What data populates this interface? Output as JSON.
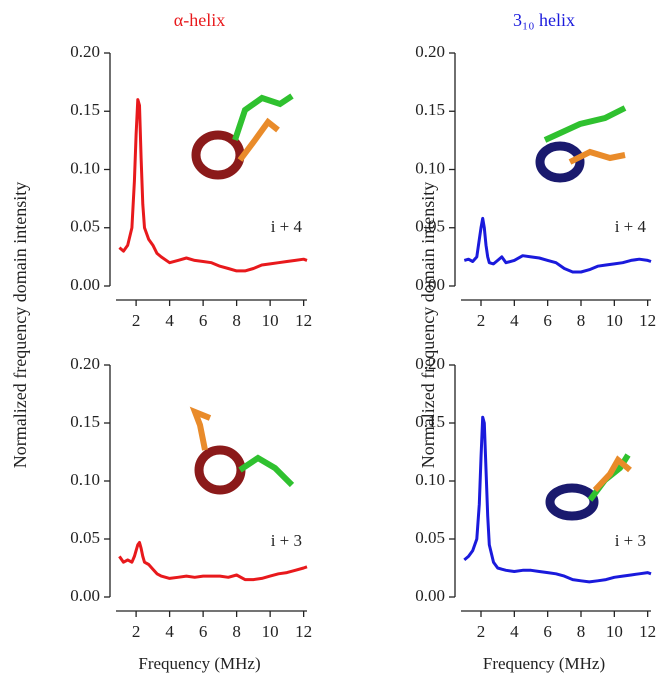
{
  "chart_data": [
    {
      "type": "line",
      "title": "α-helix",
      "ylabel": "Normalized frequency domain intensity",
      "annotation": "i + 4",
      "color": "#e8191c",
      "x": [
        1.0,
        1.25,
        1.5,
        1.75,
        1.9,
        2.0,
        2.1,
        2.2,
        2.3,
        2.4,
        2.5,
        2.75,
        3.0,
        3.25,
        3.5,
        4,
        4.5,
        5,
        5.5,
        6,
        6.5,
        7,
        7.5,
        8,
        8.5,
        9,
        9.5,
        10,
        10.5,
        11,
        11.5,
        12,
        12.2
      ],
      "values": [
        0.033,
        0.03,
        0.035,
        0.05,
        0.09,
        0.13,
        0.16,
        0.155,
        0.11,
        0.07,
        0.05,
        0.04,
        0.035,
        0.028,
        0.025,
        0.02,
        0.022,
        0.024,
        0.022,
        0.021,
        0.02,
        0.017,
        0.015,
        0.013,
        0.013,
        0.015,
        0.018,
        0.019,
        0.02,
        0.021,
        0.022,
        0.023,
        0.022
      ],
      "xlim": [
        0.8,
        12.2
      ],
      "ylim": [
        0,
        0.2
      ],
      "xticks": [
        2,
        4,
        6,
        8,
        10,
        12
      ],
      "yticks": [
        {
          "value": 0,
          "label": "0.00"
        },
        {
          "value": 0.05,
          "label": "0.05"
        },
        {
          "value": 0.1,
          "label": "0.10"
        },
        {
          "value": 0.15,
          "label": "0.15"
        },
        {
          "value": 0.2,
          "label": "0.20"
        }
      ]
    },
    {
      "type": "line",
      "title": "3₁₀ helix",
      "ylabel": "Normalized frequency domain intensity",
      "annotation": "i + 4",
      "color": "#1a1adc",
      "x": [
        1.0,
        1.25,
        1.5,
        1.75,
        1.9,
        2.0,
        2.1,
        2.2,
        2.3,
        2.4,
        2.5,
        2.75,
        3.0,
        3.25,
        3.5,
        4,
        4.5,
        5,
        5.5,
        6,
        6.5,
        7,
        7.5,
        8,
        8.5,
        9,
        9.5,
        10,
        10.5,
        11,
        11.5,
        12,
        12.2
      ],
      "values": [
        0.022,
        0.023,
        0.021,
        0.025,
        0.04,
        0.05,
        0.058,
        0.05,
        0.035,
        0.025,
        0.02,
        0.019,
        0.022,
        0.025,
        0.02,
        0.022,
        0.026,
        0.025,
        0.024,
        0.022,
        0.02,
        0.015,
        0.012,
        0.012,
        0.014,
        0.017,
        0.018,
        0.019,
        0.02,
        0.022,
        0.023,
        0.022,
        0.021
      ],
      "xlim": [
        0.8,
        12.2
      ],
      "ylim": [
        0,
        0.2
      ],
      "xticks": [
        2,
        4,
        6,
        8,
        10,
        12
      ],
      "yticks": [
        {
          "value": 0,
          "label": "0.00"
        },
        {
          "value": 0.05,
          "label": "0.05"
        },
        {
          "value": 0.1,
          "label": "0.10"
        },
        {
          "value": 0.15,
          "label": "0.15"
        },
        {
          "value": 0.2,
          "label": "0.20"
        }
      ]
    },
    {
      "type": "line",
      "xlabel": "Frequency (MHz)",
      "annotation": "i + 3",
      "color": "#e8191c",
      "x": [
        1.0,
        1.25,
        1.5,
        1.75,
        1.9,
        2.0,
        2.1,
        2.2,
        2.3,
        2.4,
        2.5,
        2.75,
        3.0,
        3.25,
        3.5,
        4,
        4.5,
        5,
        5.5,
        6,
        6.5,
        7,
        7.5,
        8,
        8.5,
        9,
        9.5,
        10,
        10.5,
        11,
        11.5,
        12,
        12.2
      ],
      "values": [
        0.035,
        0.03,
        0.032,
        0.03,
        0.035,
        0.04,
        0.045,
        0.047,
        0.042,
        0.035,
        0.03,
        0.028,
        0.024,
        0.02,
        0.018,
        0.016,
        0.017,
        0.018,
        0.017,
        0.018,
        0.018,
        0.018,
        0.017,
        0.019,
        0.015,
        0.015,
        0.016,
        0.018,
        0.02,
        0.021,
        0.023,
        0.025,
        0.026
      ],
      "xlim": [
        0.8,
        12.2
      ],
      "ylim": [
        0,
        0.2
      ],
      "xticks": [
        2,
        4,
        6,
        8,
        10,
        12
      ],
      "yticks": [
        {
          "value": 0,
          "label": "0.00"
        },
        {
          "value": 0.05,
          "label": "0.05"
        },
        {
          "value": 0.1,
          "label": "0.10"
        },
        {
          "value": 0.15,
          "label": "0.15"
        },
        {
          "value": 0.2,
          "label": "0.20"
        }
      ]
    },
    {
      "type": "line",
      "xlabel": "Frequency (MHz)",
      "annotation": "i + 3",
      "color": "#1a1adc",
      "x": [
        1.0,
        1.25,
        1.5,
        1.75,
        1.9,
        2.0,
        2.1,
        2.2,
        2.3,
        2.4,
        2.5,
        2.75,
        3.0,
        3.25,
        3.5,
        4,
        4.5,
        5,
        5.5,
        6,
        6.5,
        7,
        7.5,
        8,
        8.5,
        9,
        9.5,
        10,
        10.5,
        11,
        11.5,
        12,
        12.2
      ],
      "values": [
        0.032,
        0.035,
        0.04,
        0.05,
        0.08,
        0.12,
        0.155,
        0.15,
        0.11,
        0.07,
        0.045,
        0.03,
        0.025,
        0.024,
        0.023,
        0.022,
        0.023,
        0.023,
        0.022,
        0.021,
        0.02,
        0.018,
        0.015,
        0.014,
        0.013,
        0.014,
        0.015,
        0.017,
        0.018,
        0.019,
        0.02,
        0.021,
        0.02
      ],
      "xlim": [
        0.8,
        12.2
      ],
      "ylim": [
        0,
        0.2
      ],
      "xticks": [
        2,
        4,
        6,
        8,
        10,
        12
      ],
      "yticks": [
        {
          "value": 0,
          "label": "0.00"
        },
        {
          "value": 0.05,
          "label": "0.05"
        },
        {
          "value": 0.1,
          "label": "0.10"
        },
        {
          "value": 0.15,
          "label": "0.15"
        },
        {
          "value": 0.2,
          "label": "0.20"
        }
      ]
    }
  ]
}
